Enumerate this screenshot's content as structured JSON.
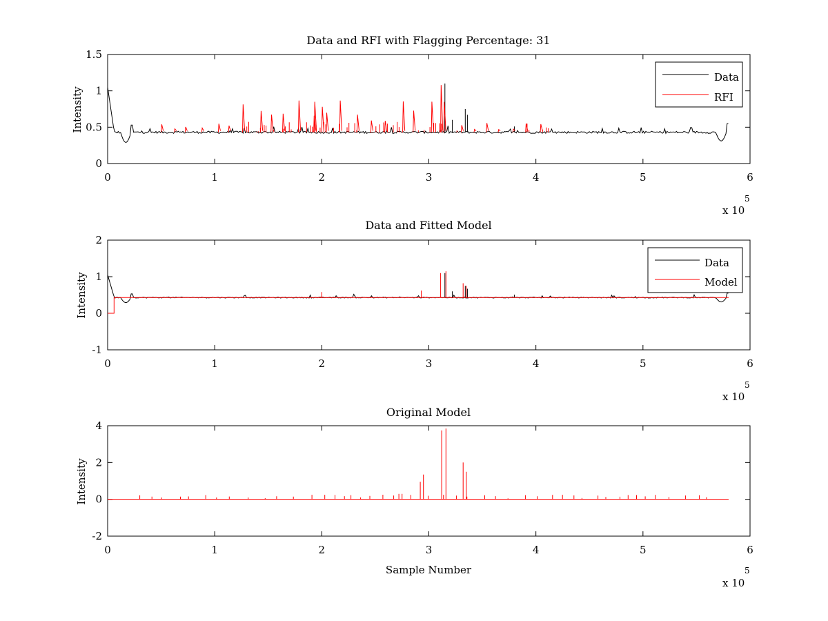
{
  "chart_data": [
    {
      "type": "line",
      "title": "Data and RFI with Flagging Percentage: 31",
      "xlabel": "",
      "ylabel": "Intensity",
      "xlim": [
        0,
        600000
      ],
      "ylim": [
        0,
        1.5
      ],
      "xticks": [
        0,
        1,
        2,
        3,
        4,
        5,
        6
      ],
      "yticks": [
        0,
        0.5,
        1,
        1.5
      ],
      "x_exponent_label": "x 10",
      "x_exponent_power": "5",
      "legend_position": "top-right",
      "series": [
        {
          "name": "Data",
          "color": "#000000",
          "description": "baseline ~0.43 with spikes",
          "baseline": 0.43
        },
        {
          "name": "RFI",
          "color": "#ff0000",
          "description": "flagged RFI spikes between 0.5e5 and 4.15e5"
        }
      ]
    },
    {
      "type": "line",
      "title": "Data and Fitted Model",
      "xlabel": "",
      "ylabel": "Intensity",
      "xlim": [
        0,
        600000
      ],
      "ylim": [
        -1,
        2
      ],
      "xticks": [
        0,
        1,
        2,
        3,
        4,
        5,
        6
      ],
      "yticks": [
        -1,
        0,
        1,
        2
      ],
      "x_exponent_label": "x 10",
      "x_exponent_power": "5",
      "legend_position": "top-right",
      "series": [
        {
          "name": "Data",
          "color": "#000000",
          "baseline": 0.43
        },
        {
          "name": "Model",
          "color": "#ff0000",
          "baseline": 0.43
        }
      ]
    },
    {
      "type": "line",
      "title": "Original Model",
      "xlabel": "Sample Number",
      "ylabel": "Intensity",
      "xlim": [
        0,
        600000
      ],
      "ylim": [
        -2,
        4
      ],
      "xticks": [
        0,
        1,
        2,
        3,
        4,
        5,
        6
      ],
      "yticks": [
        -2,
        0,
        2,
        4
      ],
      "x_exponent_label": "x 10",
      "x_exponent_power": "5",
      "series": [
        {
          "name": "",
          "color": "#ff0000",
          "baseline": 0,
          "major_spikes": [
            [
              292000,
              0.95
            ],
            [
              295000,
              1.35
            ],
            [
              312000,
              3.75
            ],
            [
              316000,
              3.85
            ],
            [
              332000,
              2.0
            ],
            [
              335000,
              1.5
            ]
          ]
        }
      ]
    }
  ]
}
